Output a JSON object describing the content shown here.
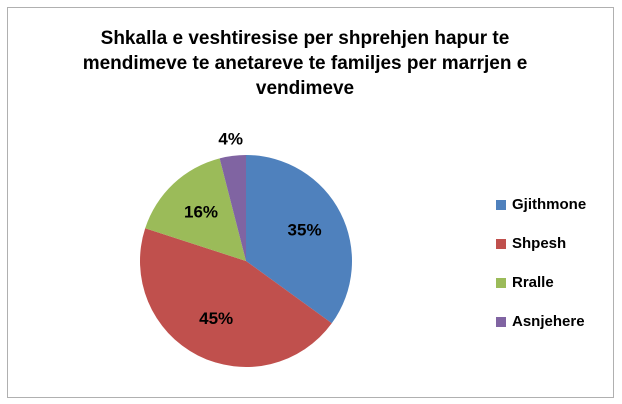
{
  "chart_data": {
    "type": "pie",
    "title": "Shkalla e veshtiresise per shprehjen hapur te mendimeve te anetareve te familjes per marrjen e vendimeve",
    "categories": [
      "Gjithmone",
      "Shpesh",
      "Rralle",
      "Asnjehere"
    ],
    "values": [
      35,
      45,
      16,
      4
    ],
    "value_labels": [
      "35%",
      "45%",
      "16%",
      "4%"
    ],
    "colors": [
      "#4f81bd",
      "#c0504d",
      "#9bbb59",
      "#8064a2"
    ],
    "legend": "right"
  }
}
